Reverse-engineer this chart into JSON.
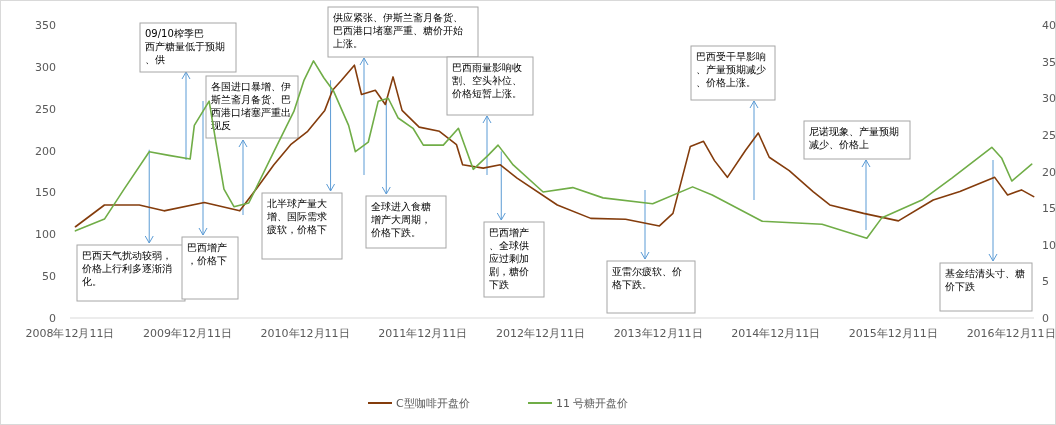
{
  "chart_data": {
    "type": "line",
    "legend": "bottom",
    "xlim": [
      "2008-12-11",
      "2017-02-20"
    ],
    "xticks": [
      {
        "value": "2008-12-11",
        "label": "2008年12月11日"
      },
      {
        "value": "2009-12-11",
        "label": "2009年12月11日"
      },
      {
        "value": "2010-12-11",
        "label": "2010年12月11日"
      },
      {
        "value": "2011-12-11",
        "label": "2011年12月11日"
      },
      {
        "value": "2012-12-11",
        "label": "2012年12月11日"
      },
      {
        "value": "2013-12-11",
        "label": "2013年12月11日"
      },
      {
        "value": "2014-12-11",
        "label": "2014年12月11日"
      },
      {
        "value": "2015-12-11",
        "label": "2015年12月11日"
      },
      {
        "value": "2016-12-11",
        "label": "2016年12月11日"
      }
    ],
    "ylim": [
      0,
      350
    ],
    "yticks": [
      0,
      50,
      100,
      150,
      200,
      250,
      300,
      350
    ],
    "y2lim": [
      0,
      40
    ],
    "y2ticks": [
      0,
      5,
      10,
      15,
      20,
      25,
      30,
      35,
      40
    ],
    "series": [
      {
        "name": "C型咖啡开盘价",
        "color": "#843c0c",
        "x": [
          "2008-12-28",
          "2009-03-28",
          "2009-07-14",
          "2009-09-29",
          "2010-02-01",
          "2010-05-22",
          "2010-07-14",
          "2010-09-05",
          "2010-10-27",
          "2010-12-19",
          "2011-02-10",
          "2011-03-06",
          "2011-04-03",
          "2011-05-13",
          "2011-06-04",
          "2011-07-17",
          "2011-08-17",
          "2011-09-10",
          "2011-10-08",
          "2011-11-30",
          "2012-02-01",
          "2012-03-25",
          "2012-04-13",
          "2012-06-16",
          "2012-08-08",
          "2012-09-29",
          "2013-02-01",
          "2013-05-16",
          "2013-09-01",
          "2013-12-15",
          "2014-01-26",
          "2014-03-21",
          "2014-05-01",
          "2014-06-04",
          "2014-07-14",
          "2014-09-08",
          "2014-10-18",
          "2014-11-21",
          "2015-01-22",
          "2015-04-06",
          "2015-05-28",
          "2015-09-10",
          "2015-12-27",
          "2016-04-13",
          "2016-07-05",
          "2016-10-21",
          "2016-11-30",
          "2017-01-12",
          "2017-02-19"
        ],
        "values": [
          109,
          135,
          135,
          128,
          138,
          128,
          155,
          183,
          207,
          223,
          248,
          272,
          284,
          302,
          267,
          272,
          255,
          288,
          248,
          228,
          223,
          207,
          183,
          179,
          183,
          167,
          135,
          119,
          118,
          110,
          125,
          205,
          211,
          188,
          168,
          200,
          221,
          192,
          176,
          151,
          135,
          125,
          116,
          141,
          151,
          168,
          147,
          153,
          145
        ]
      },
      {
        "name": "11 号糖开盘价",
        "color": "#70ad47",
        "axis": "y2",
        "x": [
          "2008-12-28",
          "2009-03-28",
          "2009-05-28",
          "2009-08-14",
          "2009-10-14",
          "2009-12-19",
          "2010-01-01",
          "2010-02-16",
          "2010-03-09",
          "2010-04-03",
          "2010-05-04",
          "2010-06-19",
          "2010-09-05",
          "2010-11-06",
          "2010-12-07",
          "2011-01-06",
          "2011-02-07",
          "2011-03-09",
          "2011-04-25",
          "2011-05-16",
          "2011-06-25",
          "2011-07-26",
          "2011-08-26",
          "2011-09-26",
          "2011-11-11",
          "2011-12-13",
          "2012-02-13",
          "2012-03-31",
          "2012-05-16",
          "2012-07-01",
          "2012-08-01",
          "2012-09-17",
          "2012-12-19",
          "2013-03-21",
          "2013-06-23",
          "2013-11-24",
          "2014-03-28",
          "2014-05-28",
          "2014-10-30",
          "2015-05-04",
          "2015-09-20",
          "2015-11-06",
          "2016-03-09",
          "2016-06-10",
          "2016-10-12",
          "2016-11-12",
          "2016-12-13",
          "2017-02-13"
        ],
        "values": [
          11.9,
          13.5,
          17.6,
          22.7,
          22.2,
          21.7,
          26.3,
          29.6,
          24,
          17.6,
          15.2,
          15.7,
          22.7,
          28.2,
          32.4,
          35.1,
          32.8,
          31,
          26.3,
          22.7,
          24,
          29.6,
          30,
          27.3,
          25.9,
          23.6,
          23.6,
          25.9,
          20.3,
          22.2,
          23.6,
          20.9,
          17.2,
          17.8,
          16.4,
          15.6,
          17.9,
          16.8,
          13.2,
          12.8,
          10.9,
          13.7,
          16.1,
          19.1,
          23.3,
          21.8,
          18.7,
          21
        ]
      }
    ],
    "annotations": [
      "09/10榨季巴西产糖量低于预期、供",
      "各国进口暴增、伊斯兰斋月备货、巴西港口堵塞严重出现反",
      "供应紧张、伊斯兰斋月备货、巴西港口堵塞严重、糖价开始上涨。",
      "巴西雨量影响收割、空头补位、价格短暂上涨。",
      "巴西受干旱影响、产量预期减少、价格上涨。",
      "尼诺现象、产量预期减少、价格上",
      {
        "text": "巴西天气扰动较弱，价格上行利多逐渐消化。",
        "x": "2009-08-14",
        "y": 201
      },
      "巴西增产，价格下",
      {
        "text": "北半球产量大增、国际需求疲软，价格下",
        "x": "2011-02-28",
        "y": 284
      },
      {
        "text": "全球进入食糖增产大周期，价格下跌。",
        "x": "2011-08-20",
        "y": 260
      },
      {
        "text": "巴西增产、全球供应过剩加剧，糖价下跌",
        "x": "2012-08-11",
        "y": 199
      },
      "亚雷尔疲软、价格下跌。",
      "基金结清头寸、糖价下跌"
    ]
  }
}
